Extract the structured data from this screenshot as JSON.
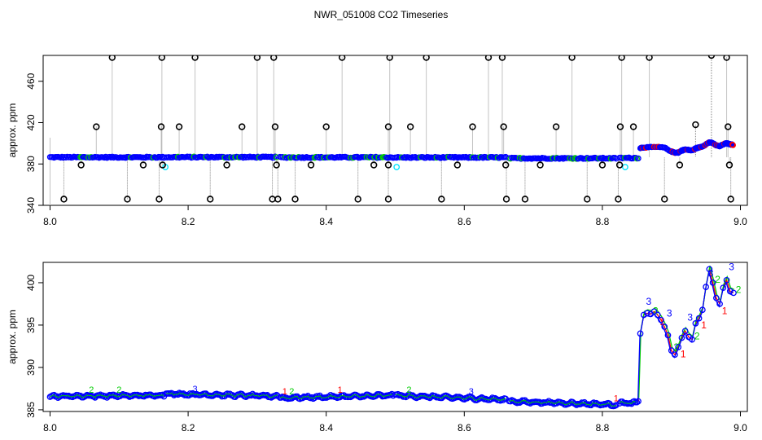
{
  "figure": {
    "title": "NWR_051008  CO2 Timeseries"
  },
  "colors": {
    "spike": "#000000",
    "drop_line": "#888888",
    "main": "#0000ff",
    "alt1": "#00cc00",
    "alt2": "#ff0000",
    "alt3": "#00e5ff",
    "alt4": "#9900cc"
  },
  "chart_data": [
    {
      "type": "scatter",
      "title": "",
      "ylabel": "approx. ppm",
      "xlabel": "",
      "xlim": [
        7.99,
        9.01
      ],
      "ylim": [
        340,
        485
      ],
      "xticks": [
        "8.0",
        "8.2",
        "8.4",
        "8.6",
        "8.8",
        "9.0"
      ],
      "yticks": [
        "340",
        "380",
        "420",
        "460"
      ],
      "baseline_segments": [
        {
          "x": [
            8.0,
            8.165
          ],
          "y": 386.5
        },
        {
          "x": [
            8.168,
            8.328
          ],
          "y": 386.6
        },
        {
          "x": [
            8.333,
            8.497
          ],
          "y": 386.4
        },
        {
          "x": [
            8.5,
            8.66
          ],
          "y": 386.3
        },
        {
          "x": [
            8.665,
            8.82
          ],
          "y": 385.5
        },
        {
          "x": [
            8.825,
            8.852
          ],
          "y": 385.8
        }
      ],
      "tail": {
        "x": [
          8.855,
          8.86,
          8.87,
          8.88,
          8.89,
          8.9,
          8.905,
          8.91,
          8.915,
          8.92,
          8.925,
          8.93,
          8.935,
          8.94,
          8.945,
          8.95,
          8.955,
          8.96,
          8.965,
          8.97,
          8.975,
          8.98,
          8.985,
          8.99
        ],
        "y": [
          395.5,
          396,
          396.2,
          396.4,
          395.8,
          392,
          391,
          391,
          393,
          394,
          393.5,
          393,
          395,
          396,
          397,
          399,
          401,
          400,
          398,
          397,
          399,
          400,
          399,
          398.5
        ]
      },
      "spikes": [
        {
          "x": 8.02,
          "y": 346
        },
        {
          "x": 8.045,
          "y": 379
        },
        {
          "x": 8.067,
          "y": 416
        },
        {
          "x": 8.09,
          "y": 483
        },
        {
          "x": 8.112,
          "y": 346
        },
        {
          "x": 8.135,
          "y": 379
        },
        {
          "x": 8.158,
          "y": 346
        },
        {
          "x": 8.161,
          "y": 416
        },
        {
          "x": 8.162,
          "y": 483
        },
        {
          "x": 8.163,
          "y": 379
        },
        {
          "x": 8.187,
          "y": 416
        },
        {
          "x": 8.21,
          "y": 483
        },
        {
          "x": 8.232,
          "y": 346
        },
        {
          "x": 8.256,
          "y": 379
        },
        {
          "x": 8.278,
          "y": 416
        },
        {
          "x": 8.3,
          "y": 483
        },
        {
          "x": 8.322,
          "y": 346
        },
        {
          "x": 8.324,
          "y": 483
        },
        {
          "x": 8.326,
          "y": 416
        },
        {
          "x": 8.328,
          "y": 379
        },
        {
          "x": 8.33,
          "y": 346
        },
        {
          "x": 8.355,
          "y": 346
        },
        {
          "x": 8.378,
          "y": 379
        },
        {
          "x": 8.4,
          "y": 416
        },
        {
          "x": 8.423,
          "y": 483
        },
        {
          "x": 8.446,
          "y": 346
        },
        {
          "x": 8.469,
          "y": 379
        },
        {
          "x": 8.49,
          "y": 416
        },
        {
          "x": 8.492,
          "y": 483
        },
        {
          "x": 8.49,
          "y": 379
        },
        {
          "x": 8.49,
          "y": 346
        },
        {
          "x": 8.522,
          "y": 416
        },
        {
          "x": 8.545,
          "y": 483
        },
        {
          "x": 8.567,
          "y": 346
        },
        {
          "x": 8.59,
          "y": 379
        },
        {
          "x": 8.612,
          "y": 416
        },
        {
          "x": 8.635,
          "y": 483
        },
        {
          "x": 8.655,
          "y": 483
        },
        {
          "x": 8.657,
          "y": 416
        },
        {
          "x": 8.66,
          "y": 379
        },
        {
          "x": 8.661,
          "y": 346
        },
        {
          "x": 8.688,
          "y": 346
        },
        {
          "x": 8.71,
          "y": 379
        },
        {
          "x": 8.733,
          "y": 416
        },
        {
          "x": 8.756,
          "y": 483
        },
        {
          "x": 8.778,
          "y": 346
        },
        {
          "x": 8.8,
          "y": 379
        },
        {
          "x": 8.823,
          "y": 346
        },
        {
          "x": 8.825,
          "y": 379
        },
        {
          "x": 8.826,
          "y": 416
        },
        {
          "x": 8.828,
          "y": 483
        },
        {
          "x": 8.845,
          "y": 416
        },
        {
          "x": 8.868,
          "y": 483
        },
        {
          "x": 8.89,
          "y": 346
        },
        {
          "x": 8.912,
          "y": 379
        },
        {
          "x": 8.935,
          "y": 418
        },
        {
          "x": 8.958,
          "y": 485
        },
        {
          "x": 8.98,
          "y": 483
        },
        {
          "x": 8.982,
          "y": 416
        },
        {
          "x": 8.984,
          "y": 379
        },
        {
          "x": 8.986,
          "y": 346
        }
      ],
      "cyan_points": [
        {
          "x": 8.167,
          "y": 377
        },
        {
          "x": 8.502,
          "y": 377
        },
        {
          "x": 8.833,
          "y": 377
        }
      ]
    },
    {
      "type": "line",
      "title": "",
      "ylabel": "approx. ppm",
      "xlabel": "",
      "xlim": [
        7.99,
        9.01
      ],
      "ylim": [
        384.8,
        402.4
      ],
      "xticks": [
        "8.0",
        "8.2",
        "8.4",
        "8.6",
        "8.8",
        "9.0"
      ],
      "yticks": [
        "385",
        "390",
        "395",
        "400"
      ],
      "segments": [
        {
          "x": [
            8.0,
            8.165
          ],
          "y": [
            386.6,
            386.7
          ]
        },
        {
          "x": [
            8.168,
            8.33
          ],
          "y": [
            386.9,
            386.6
          ]
        },
        {
          "x": [
            8.333,
            8.497
          ],
          "y": [
            386.4,
            386.7
          ]
        },
        {
          "x": [
            8.5,
            8.66
          ],
          "y": [
            386.7,
            386.2
          ]
        },
        {
          "x": [
            8.665,
            8.82
          ],
          "y": [
            386.0,
            385.6
          ]
        },
        {
          "x": [
            8.825,
            8.85
          ],
          "y": [
            385.8,
            385.8
          ]
        }
      ],
      "tail": {
        "x": [
          8.852,
          8.855,
          8.86,
          8.865,
          8.87,
          8.875,
          8.88,
          8.885,
          8.89,
          8.895,
          8.9,
          8.905,
          8.91,
          8.915,
          8.92,
          8.925,
          8.93,
          8.935,
          8.94,
          8.945,
          8.95,
          8.955,
          8.96,
          8.965,
          8.97,
          8.975,
          8.98,
          8.985,
          8.99
        ],
        "y": [
          386,
          394,
          396.2,
          396.4,
          396.3,
          396.6,
          396.2,
          395.6,
          394.8,
          393.8,
          392,
          391.5,
          392.4,
          393.5,
          394.3,
          393.6,
          393.3,
          395.2,
          395.8,
          396.8,
          399.5,
          401.6,
          400,
          398.2,
          397.5,
          399.4,
          400.3,
          399,
          398.8
        ]
      },
      "digit_labels": [
        "1",
        "2",
        "3"
      ]
    }
  ]
}
